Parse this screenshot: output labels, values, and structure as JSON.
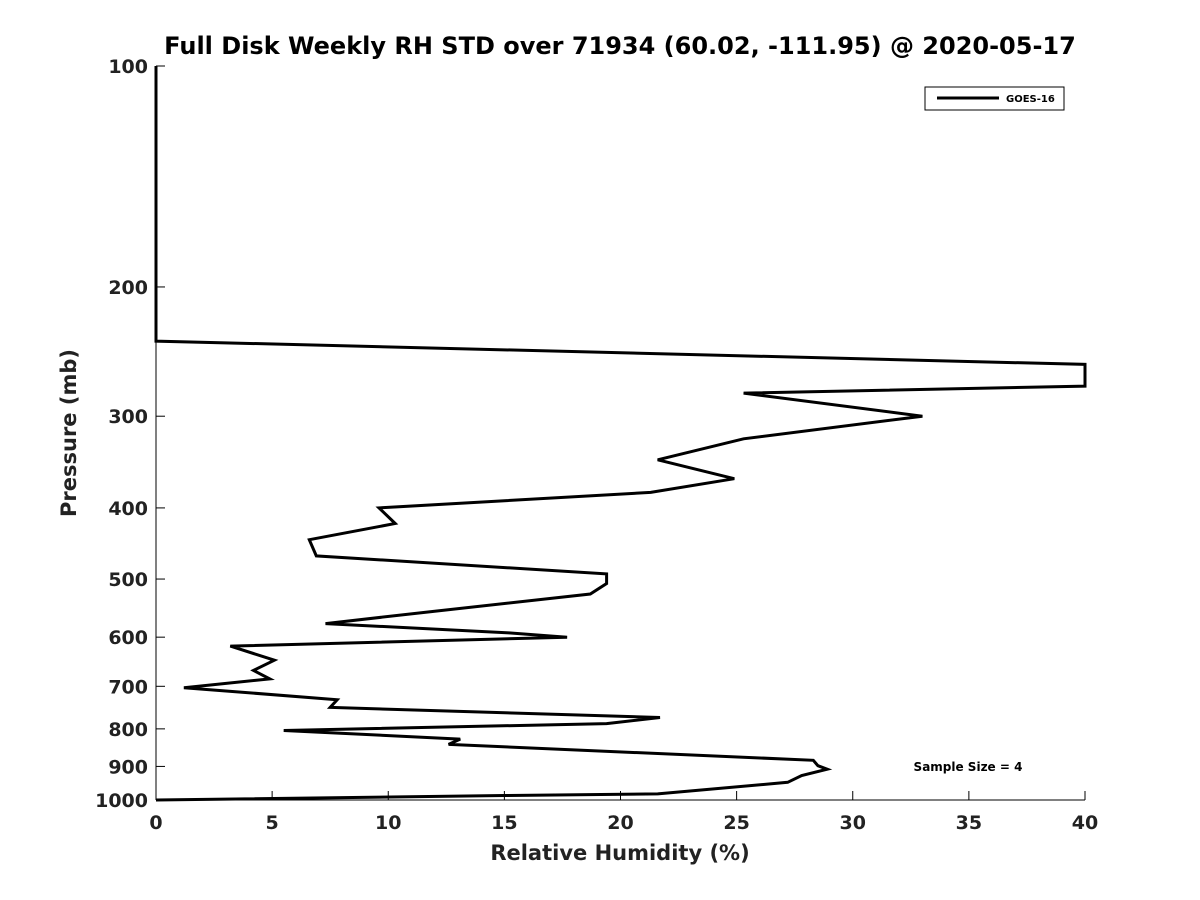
{
  "chart_data": {
    "type": "line",
    "title": "Full Disk Weekly RH STD over 71934 (60.02, -111.95) @ 2020-05-17",
    "xlabel": "Relative Humidity (%)",
    "ylabel": "Pressure (mb)",
    "xlim": [
      0,
      40
    ],
    "ylim": [
      100,
      1000
    ],
    "yscale": "log",
    "y_reversed": true,
    "xticks": [
      0,
      5,
      10,
      15,
      20,
      25,
      30,
      35,
      40
    ],
    "xtick_labels": [
      "0",
      "5",
      "10",
      "15",
      "20",
      "25",
      "30",
      "35",
      "40"
    ],
    "yticks": [
      100,
      200,
      300,
      400,
      500,
      600,
      700,
      800,
      900,
      1000
    ],
    "ytick_labels": [
      "100",
      "200",
      "300",
      "400",
      "500",
      "600",
      "700",
      "800",
      "900",
      "1000"
    ],
    "legend_position": "top-right",
    "annotation": "Sample Size = 4",
    "series": [
      {
        "name": "GOES-16",
        "color": "#000000",
        "points": [
          [
            0,
            100
          ],
          [
            0,
            150
          ],
          [
            0,
            200
          ],
          [
            0,
            237
          ],
          [
            40,
            255
          ],
          [
            40,
            273
          ],
          [
            25.3,
            279
          ],
          [
            33,
            300
          ],
          [
            25.3,
            322
          ],
          [
            21.6,
            344
          ],
          [
            24.9,
            365
          ],
          [
            21.3,
            381
          ],
          [
            9.6,
            400
          ],
          [
            10.3,
            420
          ],
          [
            6.6,
            442
          ],
          [
            6.9,
            465
          ],
          [
            19.4,
            492
          ],
          [
            19.4,
            507
          ],
          [
            18.7,
            524
          ],
          [
            12,
            553
          ],
          [
            7.3,
            575
          ],
          [
            15.2,
            592
          ],
          [
            17.7,
            600
          ],
          [
            3.2,
            617
          ],
          [
            5.1,
            645
          ],
          [
            4.2,
            666
          ],
          [
            4.9,
            684
          ],
          [
            1.2,
            703
          ],
          [
            7.8,
            730
          ],
          [
            7.5,
            748
          ],
          [
            21.7,
            772
          ],
          [
            19.4,
            787
          ],
          [
            5.5,
            804
          ],
          [
            13.1,
            826
          ],
          [
            12.6,
            840
          ],
          [
            28.3,
            883
          ],
          [
            28.5,
            898
          ],
          [
            28.9,
            908
          ],
          [
            27.8,
            926
          ],
          [
            27.2,
            946
          ],
          [
            21.6,
            981
          ],
          [
            15,
            986
          ],
          [
            0,
            1000
          ]
        ]
      }
    ]
  }
}
